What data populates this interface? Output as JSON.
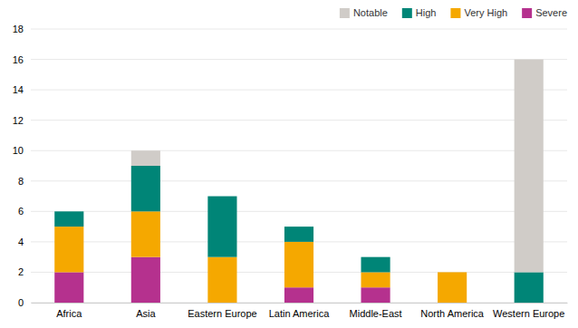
{
  "chart_data": {
    "type": "bar",
    "stacked": true,
    "categories": [
      "Africa",
      "Asia",
      "Eastern Europe",
      "Latin America",
      "Middle-East",
      "North America",
      "Western Europe"
    ],
    "series": [
      {
        "name": "Severe",
        "color": "#b5318e",
        "values": [
          2,
          3,
          0,
          1,
          1,
          0,
          0
        ]
      },
      {
        "name": "Very High",
        "color": "#f5a800",
        "values": [
          3,
          3,
          3,
          3,
          1,
          2,
          0
        ]
      },
      {
        "name": "High",
        "color": "#008577",
        "values": [
          1,
          3,
          4,
          1,
          1,
          0,
          2
        ]
      },
      {
        "name": "Notable",
        "color": "#d0ccc8",
        "values": [
          0,
          1,
          0,
          0,
          0,
          0,
          14
        ]
      }
    ],
    "ylim": [
      0,
      18
    ],
    "yticks": [
      0,
      2,
      4,
      6,
      8,
      10,
      12,
      14,
      16,
      18
    ],
    "grid": true,
    "legend": "upper right"
  }
}
